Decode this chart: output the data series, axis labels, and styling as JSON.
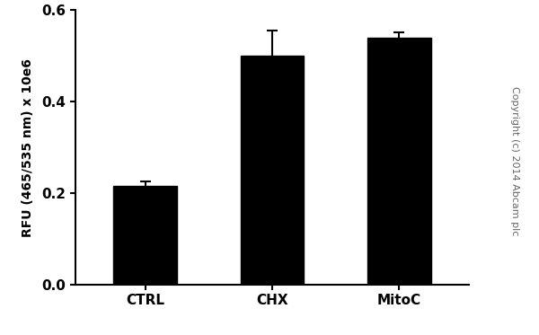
{
  "categories": [
    "CTRL",
    "CHX",
    "MitoC"
  ],
  "values": [
    0.215,
    0.5,
    0.54
  ],
  "errors": [
    0.01,
    0.055,
    0.012
  ],
  "bar_color": "#000000",
  "bar_width": 0.5,
  "ylim": [
    0.0,
    0.6
  ],
  "yticks": [
    0.0,
    0.2,
    0.4,
    0.6
  ],
  "ylabel": "RFU (465/535 nm) x 10e6",
  "copyright_text": "Copyright (c) 2014 Abcam plc",
  "background_color": "#ffffff",
  "axis_fontsize": 10,
  "tick_fontsize": 11,
  "copyright_fontsize": 8,
  "bar_xlim": [
    -0.55,
    2.55
  ]
}
